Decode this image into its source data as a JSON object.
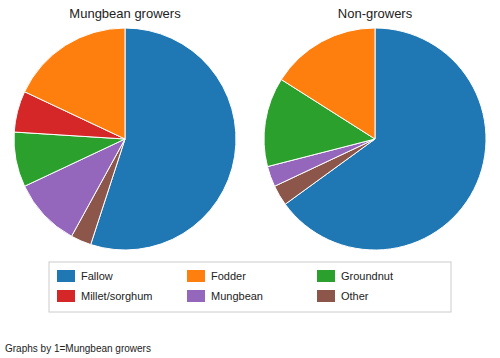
{
  "chart_data": [
    {
      "type": "pie",
      "title": "Mungbean growers",
      "categories": [
        "Fallow",
        "Other",
        "Mungbean",
        "Groundnut",
        "Millet/sorghum",
        "Fodder"
      ],
      "values": [
        55,
        3,
        10,
        8,
        6,
        18
      ],
      "legend": "bottom",
      "annotations": [
        "Graphs by 1=Mungbean growers"
      ]
    },
    {
      "type": "pie",
      "title": "Non-growers",
      "categories": [
        "Fallow",
        "Other",
        "Mungbean",
        "Groundnut",
        "Fodder"
      ],
      "values": [
        65,
        3,
        3,
        13,
        16
      ],
      "legend": "bottom"
    }
  ]
}
